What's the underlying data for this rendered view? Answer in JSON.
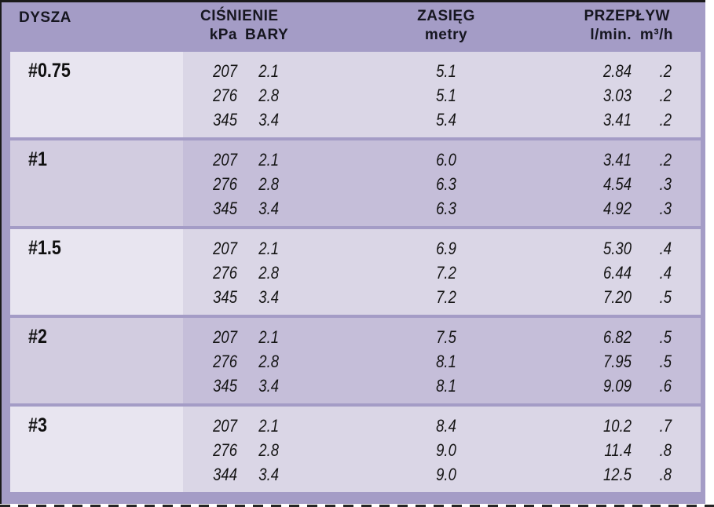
{
  "header": {
    "nozzle": "DYSZA",
    "pressure": "CIŚNIENIE",
    "pressure_sub_kpa": "kPa",
    "pressure_sub_bar": "BARY",
    "range": "ZASIĘG",
    "range_sub": "metry",
    "flow": "PRZEPŁYW",
    "flow_sub_lmin": "l/min.",
    "flow_sub_m3h": "m³/h"
  },
  "bands": [
    {
      "nozzle": "#0.75",
      "rows": [
        {
          "kpa": "207",
          "bary": "2.1",
          "metry": "5.1",
          "lmin": "2.84",
          "m3h": ".2"
        },
        {
          "kpa": "276",
          "bary": "2.8",
          "metry": "5.1",
          "lmin": "3.03",
          "m3h": ".2"
        },
        {
          "kpa": "345",
          "bary": "3.4",
          "metry": "5.4",
          "lmin": "3.41",
          "m3h": ".2"
        }
      ]
    },
    {
      "nozzle": "#1",
      "rows": [
        {
          "kpa": "207",
          "bary": "2.1",
          "metry": "6.0",
          "lmin": "3.41",
          "m3h": ".2"
        },
        {
          "kpa": "276",
          "bary": "2.8",
          "metry": "6.3",
          "lmin": "4.54",
          "m3h": ".3"
        },
        {
          "kpa": "345",
          "bary": "3.4",
          "metry": "6.3",
          "lmin": "4.92",
          "m3h": ".3"
        }
      ]
    },
    {
      "nozzle": "#1.5",
      "rows": [
        {
          "kpa": "207",
          "bary": "2.1",
          "metry": "6.9",
          "lmin": "5.30",
          "m3h": ".4"
        },
        {
          "kpa": "276",
          "bary": "2.8",
          "metry": "7.2",
          "lmin": "6.44",
          "m3h": ".4"
        },
        {
          "kpa": "345",
          "bary": "3.4",
          "metry": "7.2",
          "lmin": "7.20",
          "m3h": ".5"
        }
      ]
    },
    {
      "nozzle": "#2",
      "rows": [
        {
          "kpa": "207",
          "bary": "2.1",
          "metry": "7.5",
          "lmin": "6.82",
          "m3h": ".5"
        },
        {
          "kpa": "276",
          "bary": "2.8",
          "metry": "8.1",
          "lmin": "7.95",
          "m3h": ".5"
        },
        {
          "kpa": "345",
          "bary": "3.4",
          "metry": "8.1",
          "lmin": "9.09",
          "m3h": ".6"
        }
      ]
    },
    {
      "nozzle": "#3",
      "rows": [
        {
          "kpa": "207",
          "bary": "2.1",
          "metry": "8.4",
          "lmin": "10.2",
          "m3h": ".7"
        },
        {
          "kpa": "276",
          "bary": "2.8",
          "metry": "9.0",
          "lmin": "11.4",
          "m3h": ".8"
        },
        {
          "kpa": "344",
          "bary": "3.4",
          "metry": "9.0",
          "lmin": "12.5",
          "m3h": ".8"
        }
      ]
    }
  ],
  "colors": {
    "frame_purple": "#a49cc6",
    "light_band_label": "#e8e5f0",
    "light_band_data": "#dad6e6",
    "dark_band_label": "#d2cce0",
    "dark_band_data": "#c5bed9",
    "text": "#141414",
    "outer_line": "#1a1a1a"
  }
}
